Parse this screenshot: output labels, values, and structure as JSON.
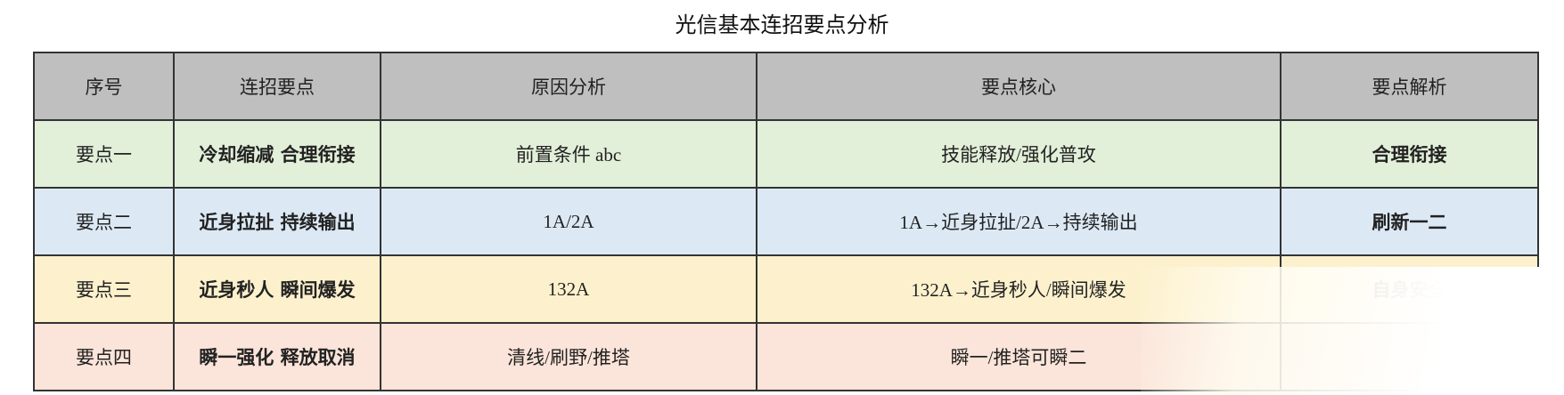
{
  "title": "光信基本连招要点分析",
  "headers": [
    "序号",
    "连招要点",
    "原因分析",
    "要点核心",
    "要点解析"
  ],
  "row_colors": [
    "#e2efd9",
    "#dce9f5",
    "#fdf1cd",
    "#fbe4d9"
  ],
  "rows": [
    [
      "要点一",
      "冷却缩减  合理衔接",
      "前置条件 abc",
      "技能释放/强化普攻",
      "合理衔接"
    ],
    [
      "要点二",
      "近身拉扯  持续输出",
      "1A/2A",
      "1A→近身拉扯/2A→持续输出",
      "刷新一二"
    ],
    [
      "要点三",
      "近身秒人  瞬间爆发",
      "132A",
      "132A→近身秒人/瞬间爆发",
      "自身安全"
    ],
    [
      "要点四",
      "瞬一强化  释放取消",
      "清线/刷野/推塔",
      "瞬一/推塔可瞬二",
      ""
    ]
  ]
}
